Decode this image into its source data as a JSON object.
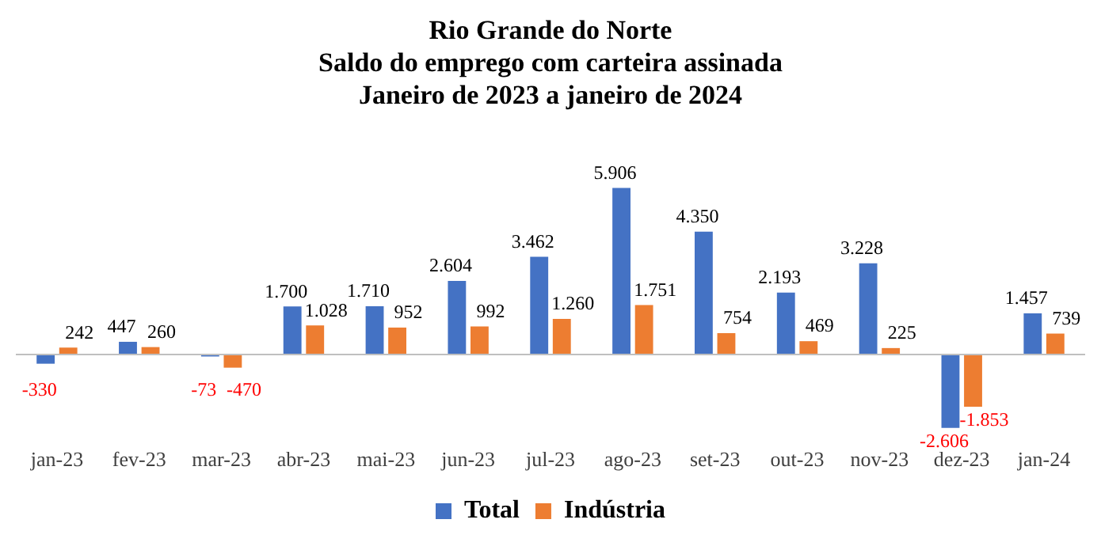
{
  "chart_data": {
    "type": "bar",
    "title": "Rio Grande do Norte\nSaldo do emprego com carteira assinada\nJaneiro de 2023 a janeiro de 2024",
    "categories": [
      "jan-23",
      "fev-23",
      "mar-23",
      "abr-23",
      "mai-23",
      "jun-23",
      "jul-23",
      "ago-23",
      "set-23",
      "out-23",
      "nov-23",
      "dez-23",
      "jan-24"
    ],
    "series": [
      {
        "name": "Total",
        "color": "#4472c4",
        "values": [
          -330,
          447,
          -73,
          1700,
          1710,
          2604,
          3462,
          5906,
          4350,
          2193,
          3228,
          -2606,
          1457
        ],
        "value_labels": [
          "-330",
          "447",
          "-73",
          "1.700",
          "1.710",
          "2.604",
          "3.462",
          "5.906",
          "4.350",
          "2.193",
          "3.228",
          "-2.606",
          "1.457"
        ]
      },
      {
        "name": "Indústria",
        "color": "#ed7d31",
        "values": [
          242,
          260,
          -470,
          1028,
          952,
          992,
          1260,
          1751,
          754,
          469,
          225,
          -1853,
          739
        ],
        "value_labels": [
          "242",
          "260",
          "-470",
          "1.028",
          "952",
          "992",
          "1.260",
          "1.751",
          "754",
          "469",
          "225",
          "-1.853",
          "739"
        ]
      }
    ],
    "legend": "bottom",
    "grid": false
  }
}
